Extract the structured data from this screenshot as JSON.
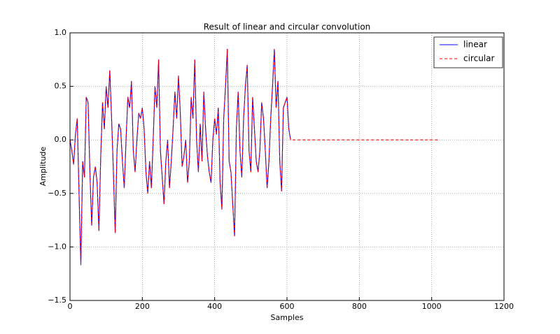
{
  "chart_data": {
    "type": "line",
    "title": "Result of linear and circular convolution",
    "xlabel": "Samples",
    "ylabel": "Amplitude",
    "xlim": [
      0,
      1200
    ],
    "xticks": [
      0,
      200,
      400,
      600,
      800,
      1000,
      1200
    ],
    "ylim": [
      -1.5,
      1.0
    ],
    "yticks": [
      {
        "value": -1.5,
        "label": "−1.5"
      },
      {
        "value": -1.0,
        "label": "−1.0"
      },
      {
        "value": -0.5,
        "label": "−0.5"
      },
      {
        "value": 0.0,
        "label": "0.0"
      },
      {
        "value": 0.5,
        "label": "0.5"
      },
      {
        "value": 1.0,
        "label": "1.0"
      }
    ],
    "grid": true,
    "legend": "upper right",
    "series": [
      {
        "name": "linear",
        "color": "#0000ff",
        "style": "solid",
        "x": [
          0,
          5,
          10,
          15,
          20,
          25,
          30,
          35,
          40,
          45,
          50,
          55,
          60,
          65,
          70,
          75,
          80,
          85,
          90,
          95,
          100,
          105,
          110,
          115,
          120,
          125,
          130,
          135,
          140,
          145,
          150,
          155,
          160,
          165,
          170,
          175,
          180,
          185,
          190,
          195,
          200,
          205,
          210,
          215,
          220,
          225,
          230,
          235,
          240,
          245,
          250,
          255,
          260,
          265,
          270,
          275,
          280,
          285,
          290,
          295,
          300,
          305,
          310,
          315,
          320,
          325,
          330,
          335,
          340,
          345,
          350,
          355,
          360,
          365,
          370,
          375,
          380,
          385,
          390,
          395,
          400,
          405,
          410,
          415,
          420,
          425,
          430,
          435,
          440,
          445,
          450,
          455,
          460,
          465,
          470,
          475,
          480,
          485,
          490,
          495,
          500,
          505,
          510,
          515,
          520,
          525,
          530,
          535,
          540,
          545,
          550,
          555,
          560,
          565,
          570,
          575,
          580,
          585,
          590,
          595,
          600,
          605,
          610
        ],
        "values": [
          0.0,
          -0.1,
          -0.23,
          0.05,
          0.2,
          -0.5,
          -1.17,
          -0.2,
          -0.35,
          0.4,
          0.35,
          -0.3,
          -0.8,
          -0.35,
          -0.25,
          -0.4,
          -0.85,
          -0.15,
          0.35,
          0.1,
          0.5,
          0.3,
          0.65,
          0.2,
          -0.3,
          -0.87,
          -0.1,
          0.15,
          0.1,
          -0.2,
          -0.45,
          0.0,
          0.4,
          0.3,
          0.55,
          -0.1,
          -0.3,
          0.0,
          0.25,
          0.2,
          0.3,
          0.1,
          -0.3,
          -0.5,
          -0.2,
          -0.45,
          0.0,
          0.5,
          0.3,
          0.75,
          -0.1,
          -0.35,
          -0.6,
          -0.2,
          0.0,
          -0.45,
          -0.2,
          0.1,
          0.45,
          0.2,
          0.6,
          0.25,
          -0.25,
          -0.15,
          0.0,
          -0.4,
          -0.2,
          0.4,
          0.2,
          0.75,
          0.0,
          -0.3,
          0.15,
          -0.2,
          0.45,
          0.1,
          -0.15,
          -0.3,
          -0.4,
          0.0,
          0.2,
          0.05,
          0.3,
          -0.4,
          -0.65,
          0.2,
          0.5,
          0.85,
          -0.2,
          -0.3,
          -0.6,
          -0.9,
          0.1,
          0.45,
          -0.1,
          -0.35,
          0.2,
          0.5,
          0.7,
          -0.1,
          -0.3,
          0.4,
          0.1,
          -0.2,
          -0.3,
          -0.1,
          0.35,
          0.2,
          -0.1,
          -0.45,
          -0.2,
          0.2,
          0.5,
          0.85,
          0.3,
          0.55,
          -0.2,
          -0.48,
          0.3,
          0.35,
          0.4,
          0.1,
          0.0
        ]
      },
      {
        "name": "circular",
        "color": "#ff0000",
        "style": "dashed",
        "x": [
          0,
          5,
          10,
          15,
          20,
          25,
          30,
          35,
          40,
          45,
          50,
          55,
          60,
          65,
          70,
          75,
          80,
          85,
          90,
          95,
          100,
          105,
          110,
          115,
          120,
          125,
          130,
          135,
          140,
          145,
          150,
          155,
          160,
          165,
          170,
          175,
          180,
          185,
          190,
          195,
          200,
          205,
          210,
          215,
          220,
          225,
          230,
          235,
          240,
          245,
          250,
          255,
          260,
          265,
          270,
          275,
          280,
          285,
          290,
          295,
          300,
          305,
          310,
          315,
          320,
          325,
          330,
          335,
          340,
          345,
          350,
          355,
          360,
          365,
          370,
          375,
          380,
          385,
          390,
          395,
          400,
          405,
          410,
          415,
          420,
          425,
          430,
          435,
          440,
          445,
          450,
          455,
          460,
          465,
          470,
          475,
          480,
          485,
          490,
          495,
          500,
          505,
          510,
          515,
          520,
          525,
          530,
          535,
          540,
          545,
          550,
          555,
          560,
          565,
          570,
          575,
          580,
          585,
          590,
          595,
          600,
          605,
          610,
          1020
        ],
        "values": [
          0.0,
          -0.1,
          -0.23,
          0.05,
          0.2,
          -0.5,
          -1.17,
          -0.2,
          -0.35,
          0.4,
          0.35,
          -0.3,
          -0.8,
          -0.35,
          -0.25,
          -0.4,
          -0.85,
          -0.15,
          0.35,
          0.1,
          0.5,
          0.3,
          0.65,
          0.2,
          -0.3,
          -0.87,
          -0.1,
          0.15,
          0.1,
          -0.2,
          -0.45,
          0.0,
          0.4,
          0.3,
          0.55,
          -0.1,
          -0.3,
          0.0,
          0.25,
          0.2,
          0.3,
          0.1,
          -0.3,
          -0.5,
          -0.2,
          -0.45,
          0.0,
          0.5,
          0.3,
          0.75,
          -0.1,
          -0.35,
          -0.6,
          -0.2,
          0.0,
          -0.45,
          -0.2,
          0.1,
          0.45,
          0.2,
          0.6,
          0.25,
          -0.25,
          -0.15,
          0.0,
          -0.4,
          -0.2,
          0.4,
          0.2,
          0.75,
          0.0,
          -0.3,
          0.15,
          -0.2,
          0.45,
          0.1,
          -0.15,
          -0.3,
          -0.4,
          0.0,
          0.2,
          0.05,
          0.3,
          -0.4,
          -0.65,
          0.2,
          0.5,
          0.85,
          -0.2,
          -0.3,
          -0.6,
          -0.9,
          0.1,
          0.45,
          -0.1,
          -0.35,
          0.2,
          0.5,
          0.7,
          -0.1,
          -0.3,
          0.4,
          0.1,
          -0.2,
          -0.3,
          -0.1,
          0.35,
          0.2,
          -0.1,
          -0.45,
          -0.2,
          0.2,
          0.5,
          0.85,
          0.3,
          0.55,
          -0.2,
          -0.48,
          0.3,
          0.35,
          0.4,
          0.1,
          0.0,
          0.0
        ]
      }
    ]
  }
}
